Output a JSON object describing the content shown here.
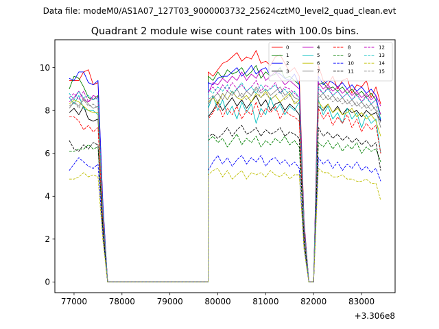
{
  "figure": {
    "suptitle": "Data file: modeM0/AS1A07_127T03_9000003732_25624cztM0_level2_quad_clean.evt"
  },
  "chart_data": {
    "type": "line",
    "title": "Quadrant 2 module wise count rates with 100.0s bins.",
    "xlabel": "",
    "ylabel": "",
    "x_offset_label": "+3.306e8",
    "xlim": [
      76600,
      83700
    ],
    "ylim": [
      -0.5,
      11.3
    ],
    "xticks": [
      77000,
      78000,
      79000,
      80000,
      81000,
      82000,
      83000
    ],
    "yticks": [
      0,
      2,
      4,
      6,
      8,
      10
    ],
    "grid": false,
    "legend_position": "top-right",
    "legend_columns": 4,
    "x_segments": [
      {
        "start": 76900,
        "end": 77500,
        "step": 100
      },
      {
        "start": 79800,
        "end": 81700,
        "step": 100
      },
      {
        "start": 82100,
        "end": 83400,
        "step": 100
      }
    ],
    "transitions": [
      {
        "x": [
          77500,
          77600,
          77700
        ],
        "frac": [
          1.0,
          0.4,
          0
        ]
      },
      {
        "x": [
          77700,
          79800
        ],
        "frac": [
          0,
          0
        ]
      },
      {
        "x": [
          79700,
          79800
        ],
        "frac": [
          0,
          0.85
        ]
      },
      {
        "x": [
          81700,
          81800,
          81900,
          82000,
          82100
        ],
        "frac": [
          1.0,
          0.3,
          0,
          0,
          0.95
        ]
      }
    ],
    "series": [
      {
        "name": "0",
        "color": "#ff0000",
        "dash": "solid",
        "values": {
          "a": [
            9.4,
            9.4,
            9.4,
            9.8,
            9.9,
            9.2,
            9.3
          ],
          "b": [
            9.8,
            9.6,
            9.9,
            10.2,
            10.3,
            10.5,
            10.7,
            10.3,
            10.5,
            10.4,
            10.8,
            10.2,
            10.3,
            10.1,
            10.5,
            10.6,
            10.2,
            9.8,
            10.0,
            9.6
          ],
          "c": [
            10.1,
            9.4,
            9.2,
            9.6,
            9.0,
            9.4,
            9.5,
            8.8,
            9.2,
            9.1,
            9.4,
            8.6,
            9.1,
            8.3
          ]
        }
      },
      {
        "name": "1",
        "color": "#008000",
        "dash": "solid",
        "values": {
          "a": [
            9.0,
            9.6,
            9.5,
            9.1,
            8.6,
            8.5,
            8.7
          ],
          "b": [
            9.6,
            9.4,
            9.8,
            9.5,
            9.9,
            9.7,
            9.8,
            10.0,
            9.6,
            9.8,
            10.1,
            9.5,
            9.8,
            9.6,
            9.7,
            10.0,
            9.5,
            9.6,
            9.4,
            9.2
          ],
          "c": [
            9.2,
            9.3,
            9.0,
            9.1,
            8.9,
            9.1,
            8.8,
            9.0,
            8.7,
            8.9,
            8.6,
            8.8,
            8.5,
            7.8
          ]
        }
      },
      {
        "name": "2",
        "color": "#0000ff",
        "dash": "solid",
        "values": {
          "a": [
            9.5,
            9.4,
            9.8,
            9.8,
            9.3,
            9.2,
            9.4
          ],
          "b": [
            9.3,
            9.2,
            9.5,
            9.6,
            9.6,
            9.8,
            10.0,
            9.6,
            9.8,
            10.1,
            9.7,
            9.9,
            10.0,
            9.6,
            9.8,
            9.7,
            9.5,
            9.4,
            9.7,
            9.2
          ],
          "c": [
            9.6,
            9.2,
            9.4,
            9.3,
            9.1,
            9.3,
            9.0,
            9.2,
            8.9,
            9.1,
            8.8,
            9.0,
            8.7,
            7.5
          ]
        }
      },
      {
        "name": "3",
        "color": "#000000",
        "dash": "solid",
        "values": {
          "a": [
            7.9,
            8.1,
            7.8,
            8.2,
            7.6,
            7.5,
            7.6
          ],
          "b": [
            7.7,
            8.0,
            8.4,
            8.0,
            8.3,
            8.6,
            8.2,
            8.5,
            8.1,
            8.4,
            8.7,
            8.2,
            8.5,
            8.0,
            8.3,
            8.4,
            8.0,
            8.3,
            8.1,
            7.8
          ],
          "c": [
            8.2,
            8.0,
            8.3,
            7.9,
            8.2,
            7.8,
            8.1,
            7.9,
            8.0,
            7.7,
            8.0,
            7.8,
            7.9,
            7.5
          ]
        }
      },
      {
        "name": "4",
        "color": "#bf00bf",
        "dash": "solid",
        "values": {
          "a": [
            8.4,
            8.6,
            8.9,
            8.5,
            8.4,
            8.7,
            8.6
          ],
          "b": [
            8.8,
            9.3,
            9.2,
            9.5,
            9.3,
            9.6,
            9.4,
            9.8,
            9.4,
            9.7,
            9.5,
            9.9,
            9.4,
            9.6,
            9.8,
            9.5,
            9.2,
            9.4,
            9.2,
            9.0
          ],
          "c": [
            9.3,
            9.0,
            9.2,
            8.9,
            9.1,
            8.8,
            9.0,
            8.7,
            8.9,
            8.6,
            8.8,
            8.5,
            8.7,
            8.2
          ]
        }
      },
      {
        "name": "5",
        "color": "#00bfbf",
        "dash": "solid",
        "values": {
          "a": [
            8.6,
            8.3,
            8.7,
            8.1,
            8.0,
            8.0,
            7.8
          ],
          "b": [
            8.1,
            8.7,
            8.0,
            8.5,
            7.8,
            8.2,
            7.6,
            8.4,
            7.9,
            8.3,
            7.4,
            8.1,
            7.8,
            8.6,
            8.0,
            8.3,
            7.8,
            8.2,
            8.0,
            8.4
          ],
          "c": [
            8.5,
            7.8,
            8.2,
            7.6,
            7.9,
            7.4,
            8.1,
            7.6,
            7.9,
            7.2,
            7.8,
            7.4,
            7.6,
            6.0
          ]
        }
      },
      {
        "name": "6",
        "color": "#bfbf00",
        "dash": "solid",
        "values": {
          "a": [
            8.3,
            8.5,
            8.4,
            8.2,
            8.0,
            7.9,
            7.9
          ],
          "b": [
            8.4,
            8.6,
            8.3,
            8.8,
            8.5,
            8.9,
            8.6,
            8.5,
            8.7,
            8.4,
            8.8,
            8.6,
            8.9,
            8.5,
            8.7,
            8.4,
            8.6,
            8.8,
            8.3,
            8.5
          ],
          "c": [
            8.4,
            8.1,
            8.3,
            7.9,
            8.1,
            7.8,
            7.9,
            8.1,
            7.7,
            7.9,
            7.6,
            7.8,
            7.5,
            6.8
          ]
        }
      },
      {
        "name": "7",
        "color": "#808080",
        "dash": "solid",
        "values": {
          "a": [
            8.1,
            8.4,
            8.2,
            8.6,
            8.3,
            8.1,
            8.2
          ],
          "b": [
            8.3,
            8.6,
            8.8,
            8.5,
            8.9,
            8.7,
            9.0,
            8.6,
            8.9,
            8.7,
            9.1,
            8.8,
            9.0,
            8.7,
            8.9,
            9.1,
            8.7,
            8.9,
            8.6,
            8.5
          ],
          "c": [
            8.6,
            8.8,
            8.5,
            8.7,
            8.4,
            8.6,
            8.3,
            8.5,
            8.2,
            8.4,
            8.1,
            8.3,
            8.0,
            7.2
          ]
        }
      },
      {
        "name": "8",
        "color": "#ff0000",
        "dash": "dashed",
        "values": {
          "a": [
            7.7,
            7.7,
            7.5,
            7.1,
            7.3,
            7.0,
            7.2
          ],
          "b": [
            7.6,
            7.9,
            8.3,
            7.7,
            8.1,
            7.8,
            8.2,
            7.6,
            8.0,
            7.8,
            8.4,
            7.7,
            8.1,
            7.9,
            8.2,
            7.6,
            8.0,
            7.8,
            7.7,
            7.5
          ],
          "c": [
            8.1,
            7.6,
            7.9,
            7.3,
            7.7,
            7.4,
            7.8,
            7.2,
            7.6,
            7.0,
            7.4,
            7.1,
            7.3,
            6.0
          ]
        }
      },
      {
        "name": "9",
        "color": "#008000",
        "dash": "dashed",
        "values": {
          "a": [
            6.1,
            6.1,
            6.2,
            6.2,
            6.4,
            6.2,
            6.3
          ],
          "b": [
            6.6,
            6.8,
            6.5,
            6.7,
            6.3,
            6.6,
            6.9,
            6.4,
            6.7,
            6.5,
            6.8,
            6.3,
            6.6,
            6.4,
            6.7,
            6.5,
            6.8,
            6.4,
            6.6,
            6.3
          ],
          "c": [
            6.5,
            6.3,
            6.6,
            6.2,
            6.5,
            6.1,
            6.4,
            6.2,
            6.5,
            6.0,
            6.3,
            6.1,
            6.2,
            5.6
          ]
        }
      },
      {
        "name": "10",
        "color": "#0000ff",
        "dash": "dashed",
        "values": {
          "a": [
            5.2,
            5.5,
            5.8,
            5.6,
            5.4,
            5.3,
            5.5
          ],
          "b": [
            5.2,
            5.6,
            5.9,
            5.5,
            5.8,
            5.4,
            5.7,
            5.9,
            5.5,
            5.8,
            5.6,
            5.9,
            5.4,
            5.7,
            5.8,
            5.5,
            5.7,
            5.4,
            5.6,
            5.3
          ],
          "c": [
            5.8,
            5.5,
            5.7,
            5.3,
            5.6,
            5.2,
            5.5,
            5.3,
            5.6,
            5.2,
            5.4,
            5.1,
            5.3,
            4.7
          ]
        }
      },
      {
        "name": "11",
        "color": "#000000",
        "dash": "dashed",
        "values": {
          "a": [
            6.6,
            6.2,
            6.1,
            6.4,
            6.2,
            6.5,
            6.4
          ],
          "b": [
            6.8,
            6.9,
            6.7,
            6.9,
            7.2,
            6.8,
            7.1,
            7.3,
            6.9,
            7.0,
            7.2,
            6.8,
            7.1,
            6.9,
            7.0,
            7.2,
            6.8,
            7.0,
            6.9,
            6.7
          ],
          "c": [
            7.2,
            6.8,
            7.0,
            6.7,
            6.9,
            6.6,
            6.8,
            6.5,
            6.7,
            6.4,
            6.6,
            6.3,
            6.5,
            5.2
          ]
        }
      },
      {
        "name": "12",
        "color": "#bf00bf",
        "dash": "dashed",
        "values": {
          "a": [
            8.6,
            8.8,
            8.5,
            8.9,
            8.4,
            8.6,
            8.5
          ],
          "b": [
            8.9,
            9.1,
            8.8,
            9.2,
            8.9,
            9.3,
            9.0,
            9.2,
            8.9,
            9.1,
            9.4,
            8.9,
            9.2,
            9.0,
            9.3,
            8.8,
            9.1,
            9.0,
            8.8,
            8.6
          ],
          "c": [
            9.0,
            8.8,
            9.1,
            8.7,
            8.9,
            8.6,
            8.8,
            8.5,
            8.8,
            8.4,
            8.7,
            8.3,
            8.5,
            7.8
          ]
        }
      },
      {
        "name": "13",
        "color": "#00bfbf",
        "dash": "dashed",
        "values": {
          "a": [
            8.8,
            8.5,
            8.9,
            8.6,
            8.7,
            8.5,
            8.6
          ],
          "b": [
            9.0,
            8.8,
            9.1,
            8.9,
            9.2,
            8.8,
            9.0,
            9.3,
            8.9,
            9.1,
            8.8,
            9.2,
            8.9,
            9.0,
            9.2,
            8.8,
            9.0,
            8.7,
            8.9,
            8.6
          ],
          "c": [
            9.1,
            8.8,
            9.0,
            8.7,
            8.9,
            8.6,
            8.8,
            8.5,
            8.7,
            8.4,
            8.6,
            8.3,
            8.5,
            7.6
          ]
        }
      },
      {
        "name": "14",
        "color": "#bfbf00",
        "dash": "dashed",
        "values": {
          "a": [
            4.8,
            4.8,
            4.9,
            5.1,
            4.9,
            5.0,
            4.9
          ],
          "b": [
            5.0,
            5.2,
            5.3,
            4.9,
            5.2,
            4.8,
            5.0,
            5.2,
            4.8,
            5.1,
            5.0,
            5.1,
            4.9,
            5.2,
            5.0,
            4.9,
            5.1,
            4.8,
            5.0,
            5.0
          ],
          "c": [
            5.3,
            5.1,
            5.1,
            4.9,
            4.9,
            5.0,
            4.8,
            4.8,
            4.7,
            4.7,
            4.8,
            4.6,
            4.6,
            3.8
          ]
        }
      },
      {
        "name": "15",
        "color": "#808080",
        "dash": "dashed",
        "values": {
          "a": [
            8.2,
            8.4,
            8.1,
            8.5,
            8.2,
            8.3,
            8.1
          ],
          "b": [
            8.5,
            8.7,
            8.4,
            8.8,
            8.5,
            8.9,
            8.6,
            8.8,
            8.5,
            8.7,
            9.0,
            8.6,
            8.8,
            8.5,
            8.7,
            8.9,
            8.5,
            8.7,
            8.4,
            8.3
          ],
          "c": [
            8.8,
            8.5,
            8.7,
            8.4,
            8.6,
            8.3,
            8.5,
            8.2,
            8.4,
            8.1,
            8.3,
            8.0,
            8.2,
            7.4
          ]
        }
      }
    ]
  }
}
